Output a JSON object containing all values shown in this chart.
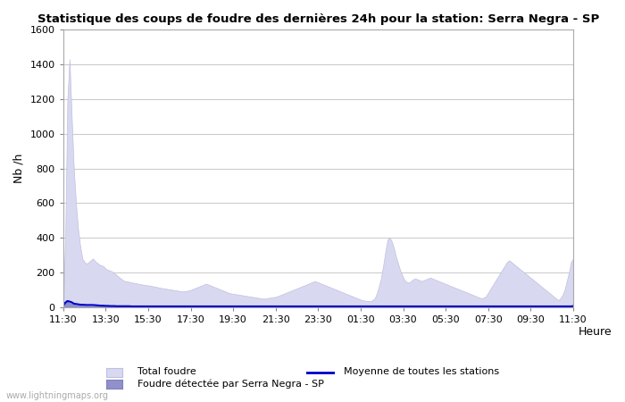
{
  "title": "Statistique des coups de foudre des dernières 24h pour la station: Serra Negra - SP",
  "xlabel": "Heure",
  "ylabel": "Nb /h",
  "ylim": [
    0,
    1600
  ],
  "yticks": [
    0,
    200,
    400,
    600,
    800,
    1000,
    1200,
    1400,
    1600
  ],
  "xtick_labels": [
    "11:30",
    "13:30",
    "15:30",
    "17:30",
    "19:30",
    "21:30",
    "23:30",
    "01:30",
    "03:30",
    "05:30",
    "07:30",
    "09:30",
    "11:30"
  ],
  "background_color": "#ffffff",
  "plot_bg_color": "#ffffff",
  "grid_color": "#cccccc",
  "total_foudre_color": "#d8d8f0",
  "total_foudre_edge": "#c0c0e0",
  "station_foudre_color": "#9090cc",
  "station_foudre_edge": "#8080bb",
  "moyenne_color": "#0000cc",
  "watermark": "www.lightningmaps.org",
  "legend_labels": [
    "Total foudre",
    "Foudre détectée par Serra Negra - SP",
    "Moyenne de toutes les stations"
  ],
  "total_foudre_values": [
    20,
    400,
    1200,
    1430,
    1100,
    800,
    600,
    450,
    350,
    280,
    260,
    250,
    260,
    270,
    280,
    265,
    255,
    245,
    240,
    235,
    220,
    215,
    210,
    205,
    195,
    185,
    175,
    165,
    155,
    150,
    148,
    145,
    142,
    140,
    138,
    135,
    133,
    130,
    128,
    126,
    125,
    123,
    120,
    118,
    115,
    113,
    110,
    108,
    106,
    104,
    102,
    100,
    98,
    96,
    94,
    92,
    90,
    92,
    94,
    96,
    100,
    105,
    110,
    115,
    120,
    125,
    130,
    135,
    130,
    125,
    120,
    115,
    110,
    105,
    100,
    95,
    90,
    85,
    80,
    78,
    76,
    74,
    72,
    70,
    68,
    66,
    64,
    62,
    60,
    58,
    56,
    54,
    52,
    50,
    48,
    50,
    52,
    54,
    56,
    58,
    60,
    65,
    70,
    75,
    80,
    85,
    90,
    95,
    100,
    105,
    110,
    115,
    120,
    125,
    130,
    135,
    140,
    145,
    150,
    145,
    140,
    135,
    130,
    125,
    120,
    115,
    110,
    105,
    100,
    95,
    90,
    85,
    80,
    75,
    70,
    65,
    60,
    55,
    50,
    45,
    40,
    38,
    36,
    34,
    35,
    40,
    50,
    80,
    120,
    170,
    240,
    320,
    390,
    400,
    380,
    340,
    290,
    250,
    210,
    180,
    155,
    145,
    140,
    150,
    160,
    165,
    160,
    155,
    150,
    155,
    160,
    165,
    170,
    165,
    160,
    155,
    150,
    145,
    140,
    135,
    130,
    125,
    120,
    115,
    110,
    105,
    100,
    95,
    90,
    85,
    80,
    75,
    70,
    65,
    60,
    55,
    50,
    55,
    60,
    80,
    100,
    120,
    140,
    160,
    180,
    200,
    220,
    240,
    260,
    270,
    260,
    250,
    240,
    230,
    220,
    210,
    200,
    190,
    180,
    170,
    160,
    150,
    140,
    130,
    120,
    110,
    100,
    90,
    80,
    70,
    60,
    50,
    40,
    50,
    70,
    100,
    150,
    200,
    260,
    280
  ],
  "station_foudre_values": [
    5,
    20,
    30,
    25,
    20,
    15,
    12,
    10,
    8,
    7,
    7,
    6,
    6,
    6,
    6,
    6,
    6,
    6,
    5,
    5,
    5,
    5,
    4,
    4,
    4,
    4,
    4,
    4,
    4,
    4,
    4,
    4,
    3,
    3,
    3,
    3,
    3,
    3,
    3,
    3,
    3,
    3,
    3,
    3,
    3,
    3,
    3,
    3,
    3,
    3,
    3,
    3,
    3,
    3,
    3,
    3,
    3,
    3,
    3,
    3,
    3,
    3,
    3,
    3,
    3,
    3,
    3,
    3,
    3,
    3,
    3,
    3,
    3,
    3,
    3,
    3,
    3,
    3,
    3,
    3,
    3,
    3,
    3,
    3,
    3,
    3,
    3,
    3,
    3,
    3,
    3,
    3,
    3,
    3,
    3,
    3,
    3,
    3,
    3,
    3,
    3,
    3,
    3,
    3,
    3,
    3,
    3,
    3,
    3,
    3,
    3,
    3,
    3,
    3,
    3,
    3,
    3,
    3,
    3,
    3,
    3,
    3,
    3,
    3,
    3,
    3,
    3,
    3,
    3,
    3,
    3,
    3,
    3,
    3,
    3,
    3,
    3,
    3,
    3,
    3,
    3,
    3,
    3,
    3,
    3,
    3,
    3,
    3,
    3,
    3,
    3,
    3,
    3,
    3,
    3,
    3,
    3,
    3,
    3,
    3,
    3,
    3,
    3,
    3,
    3,
    3,
    3,
    3,
    3,
    3,
    3,
    3,
    3,
    3,
    3,
    3,
    3,
    3,
    3,
    3,
    3,
    3,
    3,
    3,
    3,
    3,
    3,
    3,
    3,
    3,
    3,
    3,
    3,
    3,
    3,
    3,
    3,
    3,
    3,
    3,
    3,
    3,
    3,
    3,
    3,
    3,
    3,
    3,
    3,
    3,
    3,
    3,
    3,
    3,
    3,
    3,
    3,
    3,
    3,
    3,
    3,
    3,
    3,
    3,
    3,
    3,
    3,
    3,
    3,
    3,
    3,
    3,
    3,
    3,
    3,
    3,
    3,
    3,
    3,
    5
  ],
  "moyenne_values": [
    8,
    25,
    35,
    32,
    28,
    20,
    18,
    16,
    14,
    13,
    13,
    12,
    12,
    12,
    12,
    11,
    10,
    9,
    8,
    8,
    7,
    7,
    6,
    6,
    6,
    5,
    5,
    5,
    5,
    5,
    5,
    5,
    4,
    4,
    4,
    4,
    4,
    4,
    4,
    4,
    4,
    4,
    4,
    4,
    4,
    4,
    4,
    4,
    4,
    4,
    4,
    4,
    4,
    4,
    4,
    4,
    4,
    4,
    4,
    4,
    4,
    4,
    4,
    4,
    4,
    4,
    4,
    4,
    4,
    4,
    4,
    4,
    4,
    4,
    4,
    4,
    4,
    4,
    4,
    4,
    4,
    4,
    4,
    4,
    4,
    4,
    4,
    4,
    4,
    4,
    4,
    4,
    4,
    4,
    4,
    4,
    4,
    4,
    4,
    4,
    4,
    4,
    4,
    4,
    4,
    4,
    4,
    4,
    4,
    4,
    4,
    4,
    4,
    4,
    4,
    4,
    4,
    4,
    4,
    4,
    4,
    4,
    4,
    4,
    4,
    4,
    4,
    4,
    4,
    4,
    4,
    4,
    4,
    4,
    4,
    4,
    4,
    4,
    4,
    4,
    4,
    4,
    4,
    4,
    4,
    4,
    4,
    4,
    4,
    4,
    4,
    4,
    4,
    4,
    4,
    4,
    4,
    4,
    4,
    4,
    4,
    4,
    4,
    4,
    4,
    4,
    4,
    4,
    4,
    4,
    4,
    4,
    4,
    4,
    4,
    4,
    4,
    4,
    4,
    4,
    4,
    4,
    4,
    4,
    4,
    4,
    4,
    4,
    4,
    4,
    4,
    4,
    4,
    4,
    4,
    4,
    4,
    4,
    4,
    4,
    4,
    4,
    4,
    4,
    4,
    4,
    4,
    4,
    4,
    4,
    4,
    4,
    4,
    4,
    4,
    4,
    4,
    4,
    4,
    4,
    4,
    4,
    4,
    4,
    4,
    4,
    4,
    4,
    4,
    4,
    4,
    4,
    4,
    4,
    4,
    4,
    4,
    4,
    4,
    6
  ]
}
